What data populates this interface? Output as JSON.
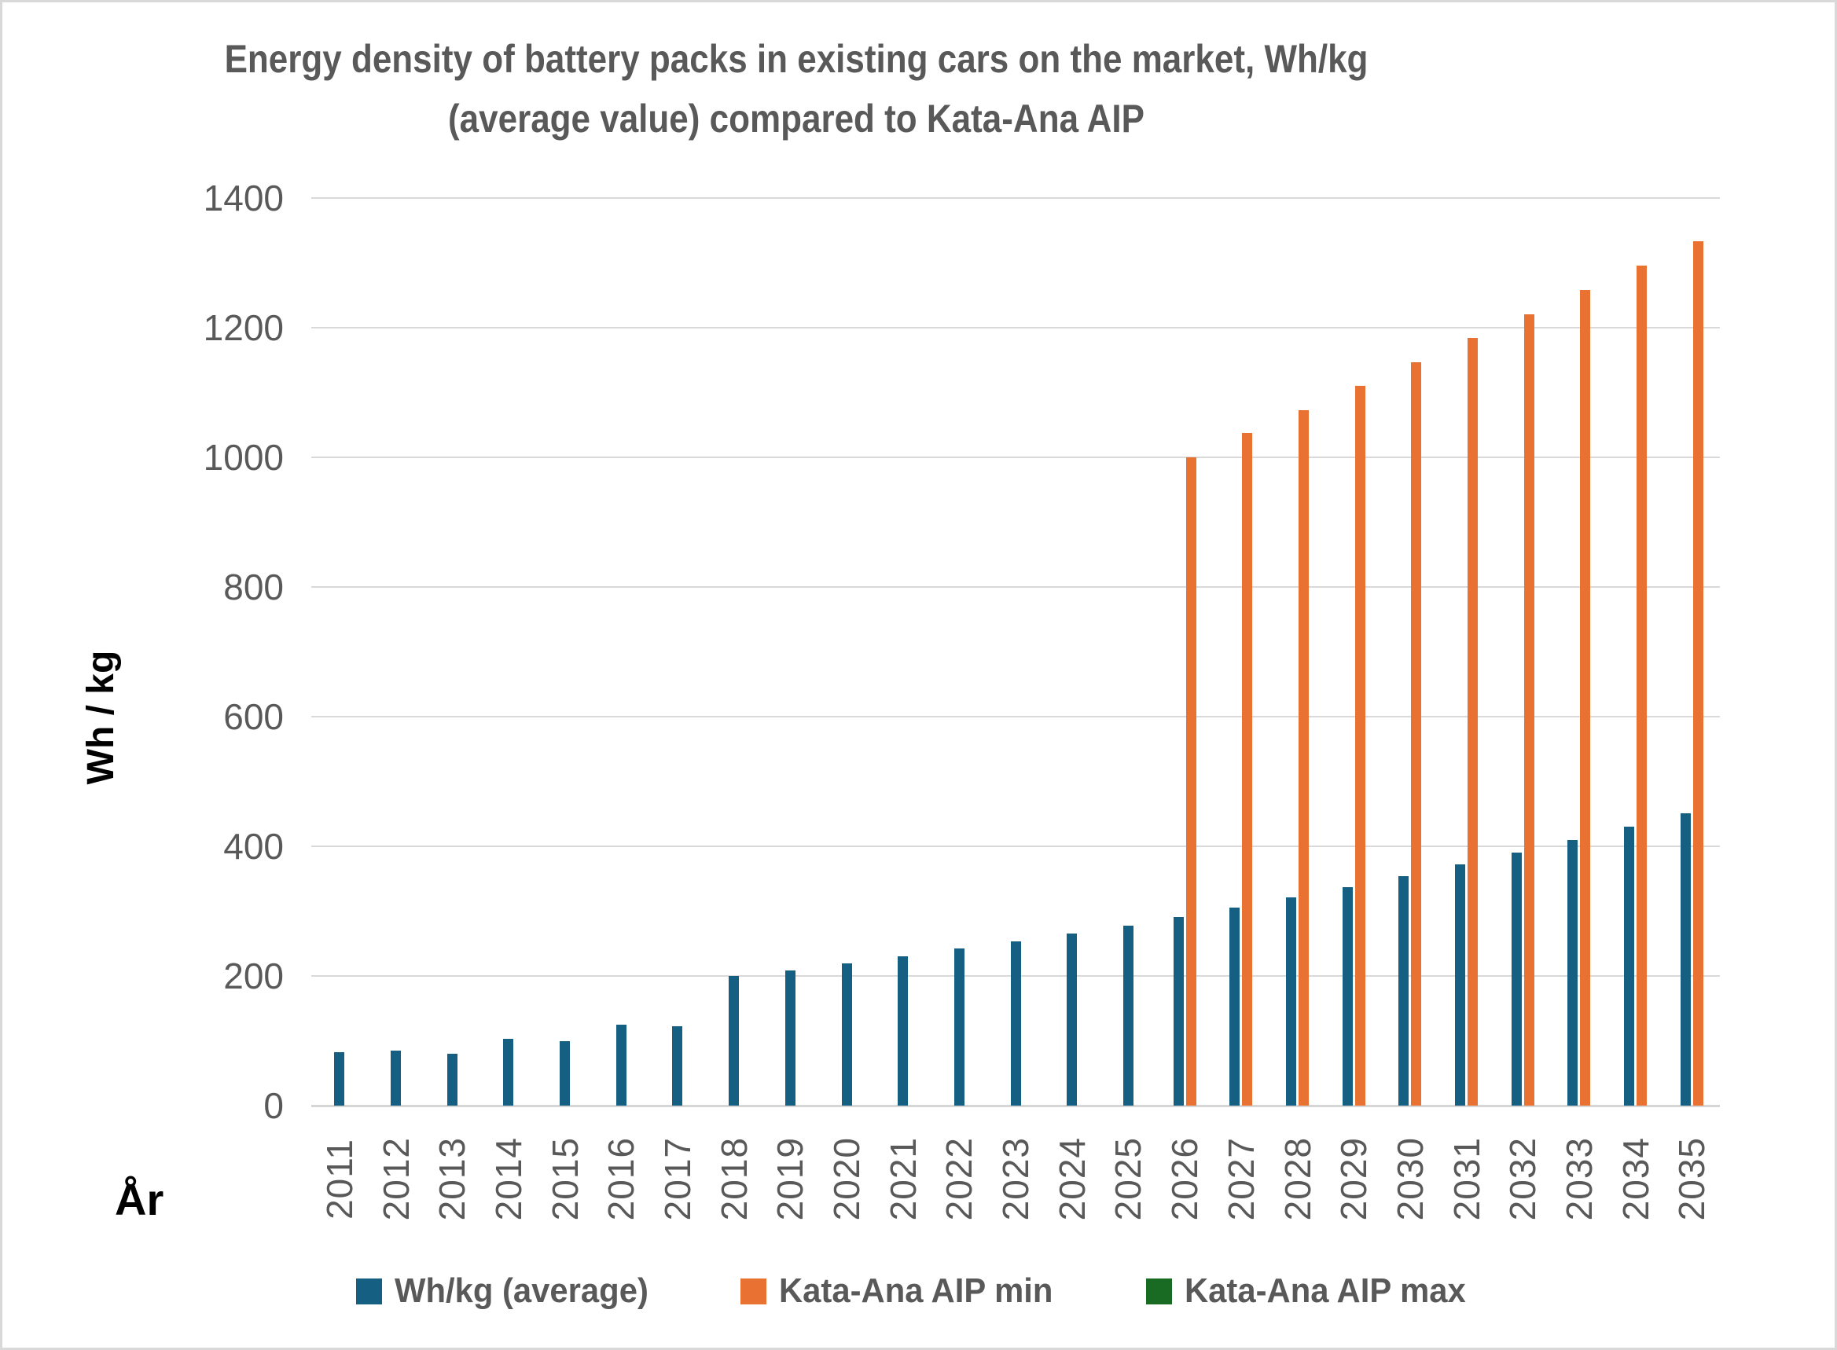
{
  "title": {
    "line1": "Energy density of battery packs in existing cars on the market, Wh/kg",
    "line2": "(average value) compared to Kata-Ana AIP"
  },
  "y_axis": {
    "title": "Wh / kg"
  },
  "x_axis": {
    "title": "År"
  },
  "legend": {
    "position": "bottom",
    "items": [
      {
        "label": "Wh/kg (average)",
        "color": "#156082"
      },
      {
        "label": "Kata-Ana AIP min",
        "color": "#E97132"
      },
      {
        "label": "Kata-Ana AIP max",
        "color": "#196B24"
      }
    ]
  },
  "colors": {
    "series_avg": "#156082",
    "series_min": "#E97132",
    "series_max": "#196B24",
    "gridline": "#D9D9D9",
    "axis_text": "#595959",
    "title_text": "#595959",
    "axis_title_text": "#000000"
  },
  "chart_data": {
    "type": "bar",
    "title": "Energy density of battery packs in existing cars on the market, Wh/kg (average value) compared to Kata-Ana AIP",
    "xlabel": "År",
    "ylabel": "Wh / kg",
    "ylim": [
      0,
      1400
    ],
    "ytick_step": 200,
    "grid": true,
    "legend_position": "bottom",
    "categories": [
      2011,
      2012,
      2013,
      2014,
      2015,
      2016,
      2017,
      2018,
      2019,
      2020,
      2021,
      2022,
      2023,
      2024,
      2025,
      2026,
      2027,
      2028,
      2029,
      2030,
      2031,
      2032,
      2033,
      2034,
      2035
    ],
    "series": [
      {
        "name": "Wh/kg (average)",
        "color": "#156082",
        "values": [
          82,
          85,
          80,
          103,
          99,
          125,
          122,
          200,
          209,
          219,
          230,
          242,
          253,
          266,
          278,
          291,
          306,
          321,
          337,
          354,
          372,
          390,
          410,
          430,
          451
        ]
      },
      {
        "name": "Kata-Ana AIP min",
        "color": "#E97132",
        "values": [
          null,
          null,
          null,
          null,
          null,
          null,
          null,
          null,
          null,
          null,
          null,
          null,
          null,
          null,
          null,
          1000,
          1037,
          1073,
          1110,
          1147,
          1184,
          1221,
          1258,
          1296,
          1333
        ]
      },
      {
        "name": "Kata-Ana AIP max",
        "color": "#196B24",
        "values": [
          null,
          null,
          null,
          null,
          null,
          null,
          null,
          null,
          null,
          null,
          null,
          null,
          null,
          null,
          null,
          null,
          null,
          null,
          null,
          null,
          null,
          null,
          null,
          null,
          null
        ]
      }
    ]
  }
}
